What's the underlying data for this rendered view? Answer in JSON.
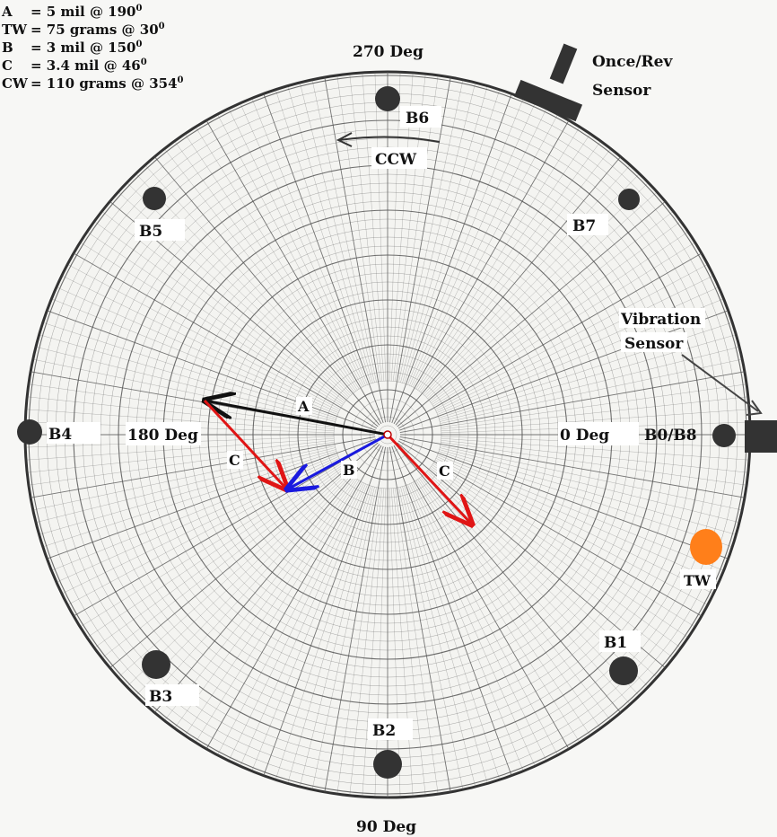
{
  "legend": [
    {
      "key": "A",
      "text": "= 5 mil @ 190",
      "deg": "0"
    },
    {
      "key": "TW",
      "text": "= 75 grams @ 30",
      "deg": "0"
    },
    {
      "key": "B",
      "text": "= 3 mil @ 150",
      "deg": "0"
    },
    {
      "key": "C",
      "text": "= 3.4 mil @ 46",
      "deg": "0"
    },
    {
      "key": "CW",
      "text": "= 110 grams @ 354",
      "deg": "0"
    }
  ],
  "angle_labels": {
    "deg270": "270 Deg",
    "deg180": "180 Deg",
    "deg0": "0 Deg",
    "deg90": "90 Deg"
  },
  "direction": "CCW",
  "sensors": {
    "once_rev_line1": "Once/Rev",
    "once_rev_line2": "Sensor",
    "vibration_line1": "Vibration",
    "vibration_line2": "Sensor"
  },
  "bolts": [
    "B0/B8",
    "B1",
    "B2",
    "B3",
    "B4",
    "B5",
    "B6",
    "B7"
  ],
  "trial_weight": "TW",
  "vectors": {
    "a": "A",
    "b": "B",
    "c": "C",
    "c2": "C"
  },
  "colors": {
    "vector_a": "#111111",
    "vector_b": "#1a1adf",
    "vector_c": "#e01515",
    "trial_weight": "#ff7f1a",
    "grid": "#555555"
  }
}
